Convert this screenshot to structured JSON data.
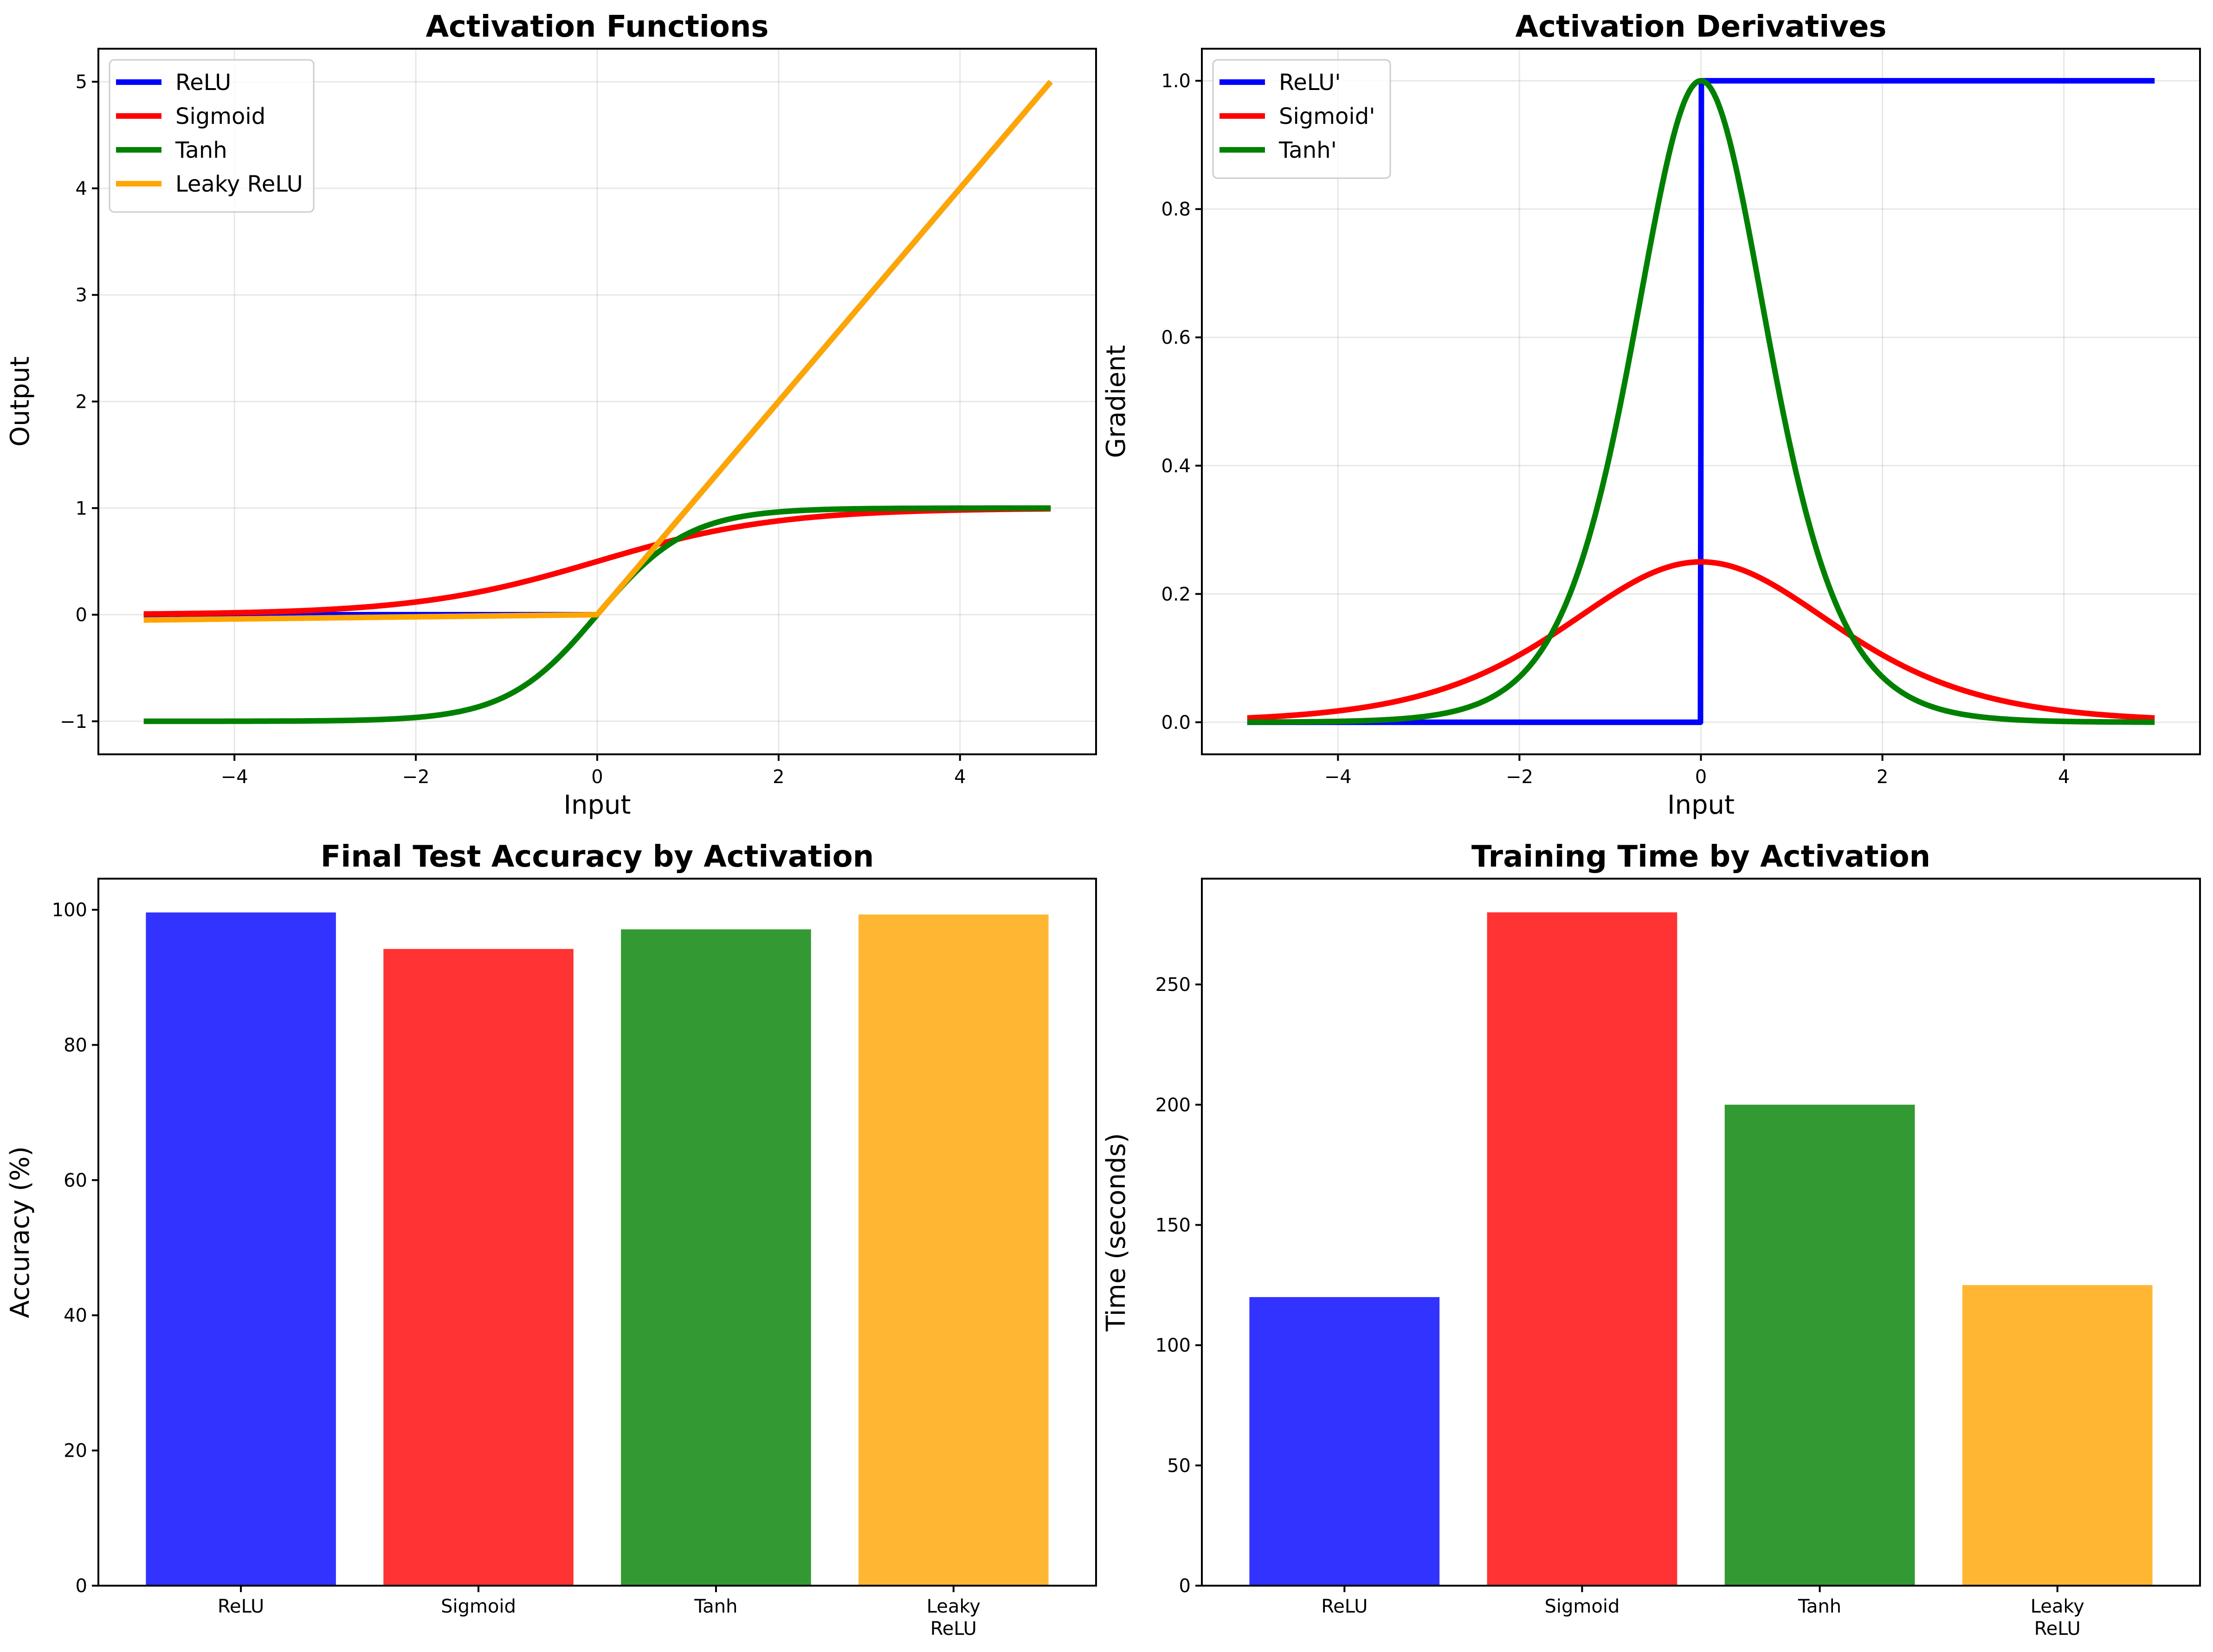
{
  "chart_data": [
    {
      "id": "activation-functions",
      "type": "line",
      "title": "Activation Functions",
      "xlabel": "Input",
      "ylabel": "Output",
      "xlim": [
        -5.5,
        5.5
      ],
      "ylim": [
        -1.31,
        5.31
      ],
      "xticks": [
        -4,
        -2,
        0,
        2,
        4
      ],
      "yticks": [
        -1,
        0,
        1,
        2,
        3,
        4,
        5
      ],
      "grid": true,
      "legend_position": "top-left",
      "x_range": [
        -5,
        5
      ],
      "series": [
        {
          "name": "ReLU",
          "function": "relu",
          "color": "#0000ff"
        },
        {
          "name": "Sigmoid",
          "function": "sigmoid",
          "color": "#ff0000"
        },
        {
          "name": "Tanh",
          "function": "tanh",
          "color": "#008000"
        },
        {
          "name": "Leaky ReLU",
          "function": "leaky_relu",
          "leak": 0.01,
          "color": "#ffa500"
        }
      ]
    },
    {
      "id": "activation-derivatives",
      "type": "line",
      "title": "Activation Derivatives",
      "xlabel": "Input",
      "ylabel": "Gradient",
      "xlim": [
        -5.5,
        5.5
      ],
      "ylim": [
        -0.05,
        1.05
      ],
      "xticks": [
        -4,
        -2,
        0,
        2,
        4
      ],
      "yticks": [
        0.0,
        0.2,
        0.4,
        0.6,
        0.8,
        1.0
      ],
      "grid": true,
      "legend_position": "top-left",
      "x_range": [
        -5,
        5
      ],
      "series": [
        {
          "name": "ReLU'",
          "function": "relu_deriv",
          "color": "#0000ff"
        },
        {
          "name": "Sigmoid'",
          "function": "sigmoid_deriv",
          "color": "#ff0000"
        },
        {
          "name": "Tanh'",
          "function": "tanh_deriv",
          "color": "#008000"
        }
      ]
    },
    {
      "id": "final-test-accuracy",
      "type": "bar",
      "title": "Final Test Accuracy by Activation",
      "xlabel": "",
      "ylabel": "Accuracy (%)",
      "categories": [
        "ReLU",
        "Sigmoid",
        "Tanh",
        "Leaky\nReLU"
      ],
      "values": [
        99.6,
        94.2,
        97.1,
        99.3
      ],
      "colors": [
        "#3333ff",
        "#ff3333",
        "#339933",
        "#ffb733"
      ],
      "ylim": [
        0,
        104.6
      ],
      "yticks": [
        0,
        20,
        40,
        60,
        80,
        100
      ],
      "grid": false
    },
    {
      "id": "training-time",
      "type": "bar",
      "title": "Training Time by Activation",
      "xlabel": "",
      "ylabel": "Time (seconds)",
      "categories": [
        "ReLU",
        "Sigmoid",
        "Tanh",
        "Leaky\nReLU"
      ],
      "values": [
        120,
        280,
        200,
        125
      ],
      "colors": [
        "#3333ff",
        "#ff3333",
        "#339933",
        "#ffb733"
      ],
      "ylim": [
        0,
        294
      ],
      "yticks": [
        0,
        50,
        100,
        150,
        200,
        250
      ],
      "grid": false
    }
  ]
}
